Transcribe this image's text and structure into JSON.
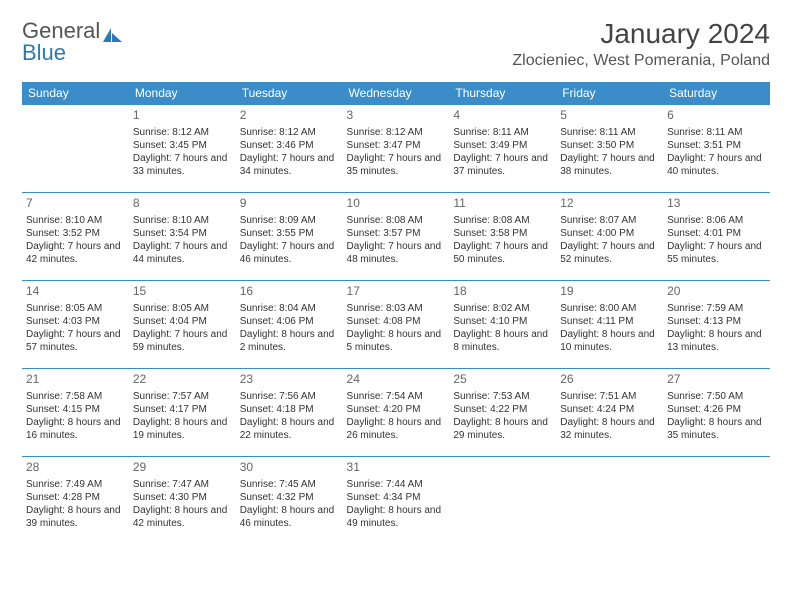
{
  "logo": {
    "text_a": "General",
    "text_b": "Blue"
  },
  "title": "January 2024",
  "location": "Zlocieniec, West Pomerania, Poland",
  "colors": {
    "header_bg": "#3a8dc9",
    "header_text": "#ffffff",
    "border": "#3a8dc9",
    "logo_gray": "#555555",
    "logo_blue": "#2a7ab9"
  },
  "dow": [
    "Sunday",
    "Monday",
    "Tuesday",
    "Wednesday",
    "Thursday",
    "Friday",
    "Saturday"
  ],
  "weeks": [
    [
      null,
      {
        "n": "1",
        "sr": "8:12 AM",
        "ss": "3:45 PM",
        "dl": "7 hours and 33 minutes."
      },
      {
        "n": "2",
        "sr": "8:12 AM",
        "ss": "3:46 PM",
        "dl": "7 hours and 34 minutes."
      },
      {
        "n": "3",
        "sr": "8:12 AM",
        "ss": "3:47 PM",
        "dl": "7 hours and 35 minutes."
      },
      {
        "n": "4",
        "sr": "8:11 AM",
        "ss": "3:49 PM",
        "dl": "7 hours and 37 minutes."
      },
      {
        "n": "5",
        "sr": "8:11 AM",
        "ss": "3:50 PM",
        "dl": "7 hours and 38 minutes."
      },
      {
        "n": "6",
        "sr": "8:11 AM",
        "ss": "3:51 PM",
        "dl": "7 hours and 40 minutes."
      }
    ],
    [
      {
        "n": "7",
        "sr": "8:10 AM",
        "ss": "3:52 PM",
        "dl": "7 hours and 42 minutes."
      },
      {
        "n": "8",
        "sr": "8:10 AM",
        "ss": "3:54 PM",
        "dl": "7 hours and 44 minutes."
      },
      {
        "n": "9",
        "sr": "8:09 AM",
        "ss": "3:55 PM",
        "dl": "7 hours and 46 minutes."
      },
      {
        "n": "10",
        "sr": "8:08 AM",
        "ss": "3:57 PM",
        "dl": "7 hours and 48 minutes."
      },
      {
        "n": "11",
        "sr": "8:08 AM",
        "ss": "3:58 PM",
        "dl": "7 hours and 50 minutes."
      },
      {
        "n": "12",
        "sr": "8:07 AM",
        "ss": "4:00 PM",
        "dl": "7 hours and 52 minutes."
      },
      {
        "n": "13",
        "sr": "8:06 AM",
        "ss": "4:01 PM",
        "dl": "7 hours and 55 minutes."
      }
    ],
    [
      {
        "n": "14",
        "sr": "8:05 AM",
        "ss": "4:03 PM",
        "dl": "7 hours and 57 minutes."
      },
      {
        "n": "15",
        "sr": "8:05 AM",
        "ss": "4:04 PM",
        "dl": "7 hours and 59 minutes."
      },
      {
        "n": "16",
        "sr": "8:04 AM",
        "ss": "4:06 PM",
        "dl": "8 hours and 2 minutes."
      },
      {
        "n": "17",
        "sr": "8:03 AM",
        "ss": "4:08 PM",
        "dl": "8 hours and 5 minutes."
      },
      {
        "n": "18",
        "sr": "8:02 AM",
        "ss": "4:10 PM",
        "dl": "8 hours and 8 minutes."
      },
      {
        "n": "19",
        "sr": "8:00 AM",
        "ss": "4:11 PM",
        "dl": "8 hours and 10 minutes."
      },
      {
        "n": "20",
        "sr": "7:59 AM",
        "ss": "4:13 PM",
        "dl": "8 hours and 13 minutes."
      }
    ],
    [
      {
        "n": "21",
        "sr": "7:58 AM",
        "ss": "4:15 PM",
        "dl": "8 hours and 16 minutes."
      },
      {
        "n": "22",
        "sr": "7:57 AM",
        "ss": "4:17 PM",
        "dl": "8 hours and 19 minutes."
      },
      {
        "n": "23",
        "sr": "7:56 AM",
        "ss": "4:18 PM",
        "dl": "8 hours and 22 minutes."
      },
      {
        "n": "24",
        "sr": "7:54 AM",
        "ss": "4:20 PM",
        "dl": "8 hours and 26 minutes."
      },
      {
        "n": "25",
        "sr": "7:53 AM",
        "ss": "4:22 PM",
        "dl": "8 hours and 29 minutes."
      },
      {
        "n": "26",
        "sr": "7:51 AM",
        "ss": "4:24 PM",
        "dl": "8 hours and 32 minutes."
      },
      {
        "n": "27",
        "sr": "7:50 AM",
        "ss": "4:26 PM",
        "dl": "8 hours and 35 minutes."
      }
    ],
    [
      {
        "n": "28",
        "sr": "7:49 AM",
        "ss": "4:28 PM",
        "dl": "8 hours and 39 minutes."
      },
      {
        "n": "29",
        "sr": "7:47 AM",
        "ss": "4:30 PM",
        "dl": "8 hours and 42 minutes."
      },
      {
        "n": "30",
        "sr": "7:45 AM",
        "ss": "4:32 PM",
        "dl": "8 hours and 46 minutes."
      },
      {
        "n": "31",
        "sr": "7:44 AM",
        "ss": "4:34 PM",
        "dl": "8 hours and 49 minutes."
      },
      null,
      null,
      null
    ]
  ],
  "labels": {
    "sunrise": "Sunrise: ",
    "sunset": "Sunset: ",
    "daylight": "Daylight: "
  }
}
